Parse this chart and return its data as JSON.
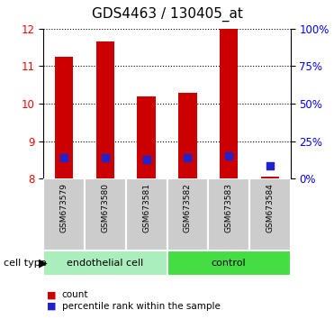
{
  "title": "GDS4463 / 130405_at",
  "samples": [
    "GSM673579",
    "GSM673580",
    "GSM673581",
    "GSM673582",
    "GSM673583",
    "GSM673584"
  ],
  "red_values": [
    11.25,
    11.65,
    10.2,
    10.3,
    12.0,
    8.05
  ],
  "blue_values": [
    8.55,
    8.55,
    8.5,
    8.55,
    8.6,
    8.35
  ],
  "ymin": 8,
  "ymax": 12,
  "yticks_left": [
    8,
    9,
    10,
    11,
    12
  ],
  "yticks_right": [
    0,
    25,
    50,
    75,
    100
  ],
  "bar_width": 0.45,
  "bar_color": "#cc0000",
  "blue_color": "#2222cc",
  "groups": [
    {
      "label": "endothelial cell",
      "samples": [
        0,
        1,
        2
      ],
      "color": "#aaeebb"
    },
    {
      "label": "control",
      "samples": [
        3,
        4,
        5
      ],
      "color": "#44dd44"
    }
  ],
  "group_label": "cell type",
  "legend_red": "count",
  "legend_blue": "percentile rank within the sample",
  "bg_color": "#ffffff",
  "sample_bg": "#cccccc",
  "title_fontsize": 11,
  "tick_fontsize": 8.5,
  "sample_fontsize": 6.5,
  "group_fontsize": 8,
  "legend_fontsize": 7.5
}
